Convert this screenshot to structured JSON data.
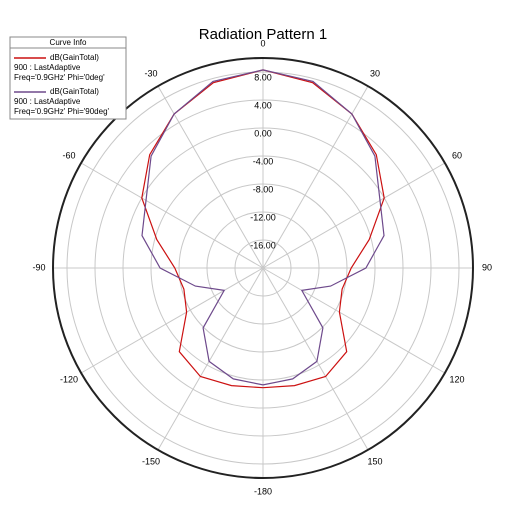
{
  "chart_data": {
    "type": "polar",
    "title": "Radiation Pattern 1",
    "x": [
      -180,
      -165,
      -150,
      -135,
      -120,
      -105,
      -90,
      -75,
      -60,
      -45,
      -30,
      -15,
      0,
      15,
      30,
      45,
      60,
      75,
      90,
      105,
      120,
      135,
      150,
      165,
      180
    ],
    "series": [
      {
        "name": "dB(GainTotal)",
        "setup": "900 : LastAdaptive",
        "label": "Freq='0.9GHz' Phi='0deg'",
        "color": "#cc1111",
        "values": [
          -2.9,
          -2.6,
          -2.1,
          -3.1,
          -7.4,
          -8.3,
          -7.4,
          -4.3,
          0,
          2.9,
          5.4,
          7.4,
          8.3,
          7.4,
          5.4,
          2.9,
          0,
          -4.3,
          -7.4,
          -8.3,
          -7.4,
          -3.1,
          -2.1,
          -2.6,
          -2.9
        ]
      },
      {
        "name": "dB(GainTotal)",
        "setup": "900 : LastAdaptive",
        "label": "Freq='0.9GHz' Phi='90deg'",
        "color": "#6e4a8c",
        "values": [
          -3.3,
          -3.6,
          -4.6,
          -7.9,
          -13.6,
          -10,
          -5.3,
          -2.1,
          -0.7,
          2.6,
          5.4,
          7.6,
          8.3,
          7.6,
          5.4,
          2.6,
          -0.7,
          -2.1,
          -5.3,
          -10,
          -13.6,
          -7.9,
          -4.6,
          -3.6,
          -3.3
        ]
      }
    ],
    "legend_title": "Curve Info",
    "rlim": [
      -20,
      10
    ],
    "rticks": [
      {
        "value": -16,
        "label": "-16.00"
      },
      {
        "value": -12,
        "label": "-12.00"
      },
      {
        "value": -8,
        "label": "-8.00"
      },
      {
        "value": -4,
        "label": "-4.00"
      },
      {
        "value": 0,
        "label": "0.00"
      },
      {
        "value": 4,
        "label": "4.00"
      },
      {
        "value": 8,
        "label": "8.00"
      }
    ],
    "thetaticks": [
      0,
      30,
      60,
      90,
      120,
      150,
      -180,
      -150,
      -120,
      -90,
      -60,
      -30
    ],
    "grid": true
  }
}
